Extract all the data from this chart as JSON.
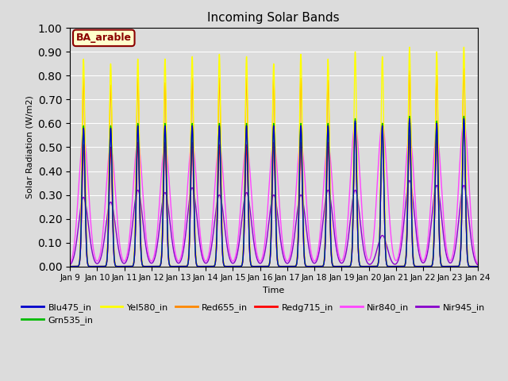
{
  "title": "Incoming Solar Bands",
  "xlabel": "Time",
  "ylabel": "Solar Radiation (W/m2)",
  "xlim_days": [
    9,
    24
  ],
  "ylim": [
    0.0,
    1.0
  ],
  "yticks": [
    0.0,
    0.1,
    0.2,
    0.3,
    0.4,
    0.5,
    0.6,
    0.7,
    0.8,
    0.9,
    1.0
  ],
  "xtick_labels": [
    "Jan 9",
    "Jan 10",
    "Jan 11",
    "Jan 12",
    "Jan 13",
    "Jan 14",
    "Jan 15",
    "Jan 16",
    "Jan 17",
    "Jan 18",
    "Jan 19",
    "Jan 20",
    "Jan 21",
    "Jan 22",
    "Jan 23",
    "Jan 24"
  ],
  "annotation": "BA_arable",
  "annotation_color": "#8B0000",
  "background_color": "#dcdcdc",
  "plot_bg_color": "#dcdcdc",
  "series": [
    {
      "name": "Blu475_in",
      "color": "#0000cc",
      "lw": 1.0
    },
    {
      "name": "Grn535_in",
      "color": "#00bb00",
      "lw": 1.0
    },
    {
      "name": "Yel580_in",
      "color": "#ffff00",
      "lw": 1.0
    },
    {
      "name": "Red655_in",
      "color": "#ff8800",
      "lw": 1.0
    },
    {
      "name": "Redg715_in",
      "color": "#ff0000",
      "lw": 1.0
    },
    {
      "name": "Nir840_in",
      "color": "#ff44ff",
      "lw": 1.0
    },
    {
      "name": "Nir945_in",
      "color": "#8800cc",
      "lw": 1.0
    }
  ],
  "day_centers": [
    9.5,
    10.5,
    11.5,
    12.5,
    13.5,
    14.5,
    15.5,
    16.5,
    17.5,
    18.5,
    19.5,
    20.5,
    21.5,
    22.5,
    23.5
  ],
  "peak_yel": [
    0.87,
    0.85,
    0.87,
    0.87,
    0.88,
    0.89,
    0.88,
    0.85,
    0.89,
    0.87,
    0.9,
    0.88,
    0.92,
    0.9,
    0.92
  ],
  "peak_red": [
    0.79,
    0.76,
    0.79,
    0.77,
    0.79,
    0.79,
    0.79,
    0.79,
    0.79,
    0.78,
    0.6,
    0.6,
    0.82,
    0.8,
    0.83
  ],
  "peak_redg": [
    0.51,
    0.5,
    0.52,
    0.52,
    0.52,
    0.51,
    0.51,
    0.52,
    0.52,
    0.52,
    0.6,
    0.6,
    0.55,
    0.55,
    0.61
  ],
  "peak_grn": [
    0.59,
    0.59,
    0.6,
    0.6,
    0.6,
    0.6,
    0.6,
    0.6,
    0.6,
    0.6,
    0.62,
    0.6,
    0.63,
    0.61,
    0.63
  ],
  "peak_blu": [
    0.58,
    0.58,
    0.59,
    0.59,
    0.59,
    0.59,
    0.59,
    0.59,
    0.59,
    0.59,
    0.61,
    0.59,
    0.62,
    0.6,
    0.62
  ],
  "peak_nir840": [
    0.55,
    0.5,
    0.52,
    0.51,
    0.52,
    0.51,
    0.51,
    0.52,
    0.52,
    0.51,
    0.6,
    0.6,
    0.55,
    0.55,
    0.61
  ],
  "peak_nir945": [
    0.29,
    0.27,
    0.32,
    0.31,
    0.33,
    0.3,
    0.31,
    0.3,
    0.3,
    0.32,
    0.32,
    0.13,
    0.36,
    0.34,
    0.34
  ]
}
